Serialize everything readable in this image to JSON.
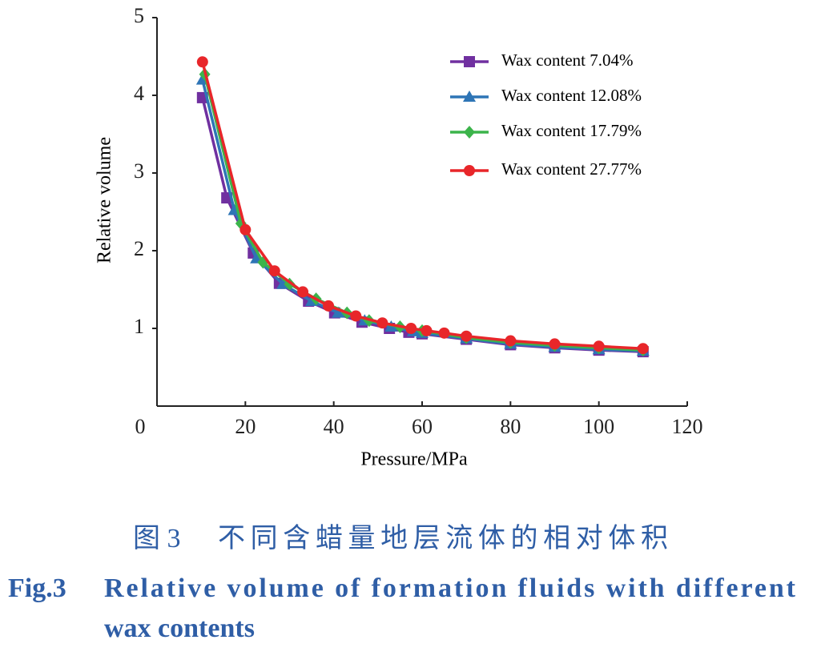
{
  "chart_data": {
    "type": "line",
    "xlabel": "Pressure/MPa",
    "ylabel": "Relative volume",
    "xlim": [
      0,
      120
    ],
    "xticks": [
      0,
      20,
      40,
      60,
      80,
      100,
      120
    ],
    "ylim": [
      0,
      5
    ],
    "yticks": [
      1,
      2,
      3,
      4,
      5
    ],
    "legend": "upper right",
    "series": [
      {
        "name": "Wax content 7.04%",
        "color": "#7030a0",
        "marker": "square",
        "x": [
          10.3,
          15.8,
          21.8,
          27.7,
          34.3,
          40.2,
          46.4,
          52.6,
          57,
          60,
          70,
          80,
          90,
          100,
          110
        ],
        "values": [
          3.97,
          2.68,
          1.97,
          1.58,
          1.35,
          1.2,
          1.08,
          1.0,
          0.95,
          0.93,
          0.86,
          0.79,
          0.75,
          0.72,
          0.7
        ]
      },
      {
        "name": "Wax content 12.08%",
        "color": "#2e75b6",
        "marker": "triangle",
        "x": [
          10.3,
          17.5,
          22.5,
          28.5,
          35,
          41,
          47,
          53,
          58,
          60,
          70,
          80,
          90,
          100,
          110
        ],
        "values": [
          4.2,
          2.52,
          1.9,
          1.57,
          1.35,
          1.2,
          1.1,
          1.02,
          0.96,
          0.94,
          0.87,
          0.8,
          0.76,
          0.73,
          0.71
        ]
      },
      {
        "name": "Wax content 17.79%",
        "color": "#3cb44b",
        "marker": "diamond",
        "x": [
          10.8,
          19,
          24,
          30,
          36,
          43,
          48,
          55,
          60,
          70,
          80,
          90,
          100,
          110
        ],
        "values": [
          4.27,
          2.35,
          1.85,
          1.57,
          1.38,
          1.2,
          1.1,
          1.02,
          0.97,
          0.88,
          0.82,
          0.78,
          0.75,
          0.72
        ]
      },
      {
        "name": "Wax content 27.77%",
        "color": "#e8262a",
        "marker": "circle",
        "x": [
          10.3,
          20,
          26.6,
          33,
          38.8,
          45,
          51,
          57.5,
          61,
          65,
          70,
          80,
          90,
          100,
          110
        ],
        "values": [
          4.43,
          2.27,
          1.74,
          1.47,
          1.29,
          1.16,
          1.07,
          1.0,
          0.97,
          0.94,
          0.9,
          0.84,
          0.8,
          0.77,
          0.74
        ]
      }
    ]
  },
  "caption": {
    "figure_cn": "图 3",
    "title_cn": "不同含蜡量地层流体的相对体积",
    "figure_en": "Fig.3",
    "title_en_lines": [
      "Relative volume of formation fluids with different",
      "wax contents"
    ]
  }
}
